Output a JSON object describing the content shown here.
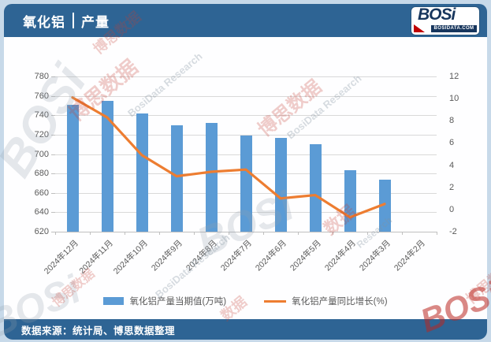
{
  "header": {
    "title_left": "氧化铝",
    "title_right": "产量",
    "logo": {
      "text": "BOSi",
      "subtext": "BOSIDATA.COM"
    }
  },
  "footer": {
    "text": "数据来源：统计局、博思数据整理"
  },
  "legend": [
    {
      "label": "氧化铝产量当期值(万吨)",
      "swatch": "bar"
    },
    {
      "label": "氧化铝产量同比增长(%)",
      "swatch": "line"
    }
  ],
  "watermarks": {
    "brand": "BOSi",
    "brand_cn": "博思数据",
    "research": "BosiData Research",
    "research_short": "Research",
    "data_cn": "数据"
  },
  "colors": {
    "header-bg": "#2E6494",
    "page-bg": "#C7D9E9",
    "card-bg": "#FEFEFF",
    "bar-fill": "#5B9BD5",
    "line-stroke": "#ED7D31",
    "grid": "#D9D9D9",
    "axis-line": "#BFBFBF",
    "axis-text": "#595959",
    "title-text": "#FFFFFF",
    "logo-navy": "#17365D",
    "logo-red": "#C00000"
  },
  "chart_data": {
    "type": "bar",
    "subtype": "combo bar+line, dual axis",
    "title": "氧化铝 | 产量",
    "categories": [
      "2024年12月",
      "2024年11月",
      "2024年10月",
      "2024年9月",
      "2024年8月",
      "2024年7月",
      "2024年6月",
      "2024年5月",
      "2024年4月",
      "2024年3月",
      "2024年2月"
    ],
    "series": [
      {
        "name": "氧化铝产量当期值(万吨)",
        "type": "bar",
        "axis": "left",
        "color": "#5B9BD5",
        "values": [
          751,
          755,
          742,
          730,
          732,
          719,
          717,
          710,
          683,
          674,
          null
        ]
      },
      {
        "name": "氧化铝产量同比增长(%)",
        "type": "line",
        "axis": "right",
        "color": "#ED7D31",
        "values": [
          10.1,
          8.3,
          4.9,
          3.0,
          3.4,
          3.6,
          1.0,
          1.3,
          -0.7,
          0.5,
          null
        ]
      }
    ],
    "left_axis": {
      "min": 620,
      "max": 780,
      "step": 20,
      "ticks": [
        780,
        760,
        740,
        720,
        700,
        680,
        660,
        640,
        620
      ]
    },
    "right_axis": {
      "min": -2,
      "max": 12,
      "step": 2,
      "ticks": [
        12,
        10,
        8,
        6,
        4,
        2,
        0,
        -2
      ]
    },
    "grid": true,
    "legend_position": "bottom"
  }
}
